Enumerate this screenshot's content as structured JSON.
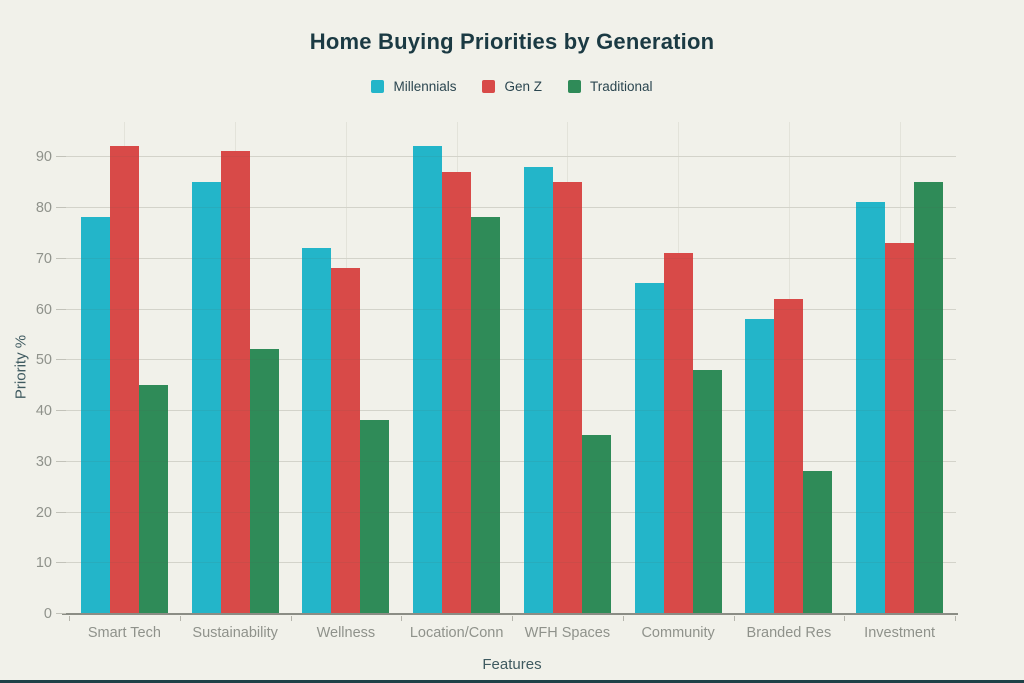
{
  "page": {
    "background_color": "#f1f1ea",
    "accent_bar_color": "#1e4147"
  },
  "chart_data": {
    "type": "bar",
    "title": "Home Buying Priorities by Generation",
    "xlabel": "Features",
    "ylabel": "Priority %",
    "categories": [
      "Smart Tech",
      "Sustainability",
      "Wellness",
      "Location/Conn",
      "WFH Spaces",
      "Community",
      "Branded Res",
      "Investment"
    ],
    "series": [
      {
        "name": "Millennials",
        "color": "#23b5c9",
        "values": [
          78,
          85,
          72,
          92,
          88,
          65,
          58,
          81
        ]
      },
      {
        "name": "Gen Z",
        "color": "#d84a48",
        "values": [
          92,
          91,
          68,
          87,
          85,
          71,
          62,
          73
        ]
      },
      {
        "name": "Traditional",
        "color": "#2f8b58",
        "values": [
          45,
          52,
          38,
          78,
          35,
          48,
          28,
          85
        ]
      }
    ],
    "yticks": [
      0,
      10,
      20,
      30,
      40,
      50,
      60,
      70,
      80,
      90
    ],
    "ylim": [
      0,
      96.8
    ],
    "grid": true,
    "legend_position": "top"
  }
}
